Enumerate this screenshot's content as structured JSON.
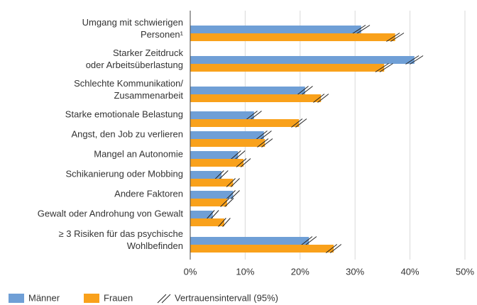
{
  "chart_data": {
    "type": "bar",
    "orientation": "horizontal",
    "categories": [
      [
        "Umgang mit schwierigen",
        "Personen¹"
      ],
      [
        "Starker Zeitdruck",
        "oder Arbeitsüberlastung"
      ],
      [
        "Schlechte Kommunikation/",
        "Zusammenarbeit"
      ],
      [
        "Starke emotionale Belastung"
      ],
      [
        "Angst, den Job zu verlieren"
      ],
      [
        "Mangel an Autonomie"
      ],
      [
        "Schikanierung oder Mobbing"
      ],
      [
        "Andere Faktoren"
      ],
      [
        "Gewalt oder Androhung von Gewalt"
      ],
      [
        "≥ 3 Risiken für das psychische",
        "Wohlbefinden"
      ]
    ],
    "series": [
      {
        "name": "Männer",
        "color": "#6f9fd6",
        "values": [
          31.1,
          40.8,
          20.9,
          11.6,
          13.4,
          8.7,
          5.7,
          7.8,
          4.1,
          21.6
        ],
        "errors": [
          1.2,
          1.2,
          1.0,
          1.0,
          1.0,
          0.9,
          0.8,
          0.8,
          0.7,
          1.0
        ]
      },
      {
        "name": "Frauen",
        "color": "#f9a11b",
        "values": [
          37.3,
          35.3,
          23.8,
          19.8,
          13.6,
          9.7,
          7.8,
          6.7,
          6.2,
          26.1
        ],
        "errors": [
          1.2,
          1.2,
          1.0,
          1.0,
          1.0,
          0.9,
          0.8,
          0.8,
          0.7,
          1.0
        ]
      }
    ],
    "ci_label": "Vertrauensintervall (95%)",
    "xlim": [
      0,
      50
    ],
    "xticks": [
      {
        "value": 0,
        "label": "0%"
      },
      {
        "value": 10,
        "label": "10%"
      },
      {
        "value": 20,
        "label": "20%"
      },
      {
        "value": 30,
        "label": "30%"
      },
      {
        "value": 40,
        "label": "40%"
      },
      {
        "value": 50,
        "label": "50%"
      }
    ],
    "grid": true
  }
}
